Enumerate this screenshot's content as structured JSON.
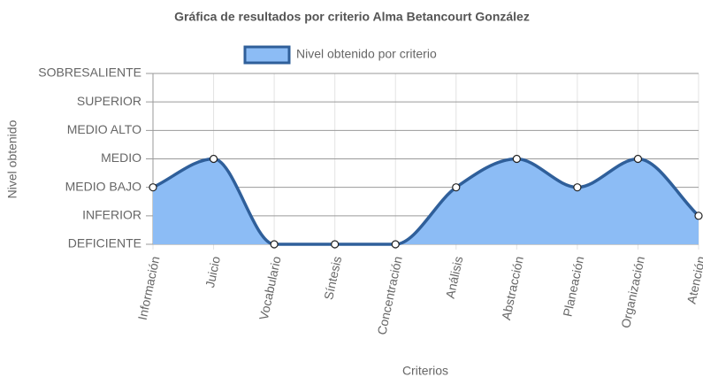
{
  "chart_data": {
    "type": "line",
    "title": "Gráfica de resultados por criterio Alma Betancourt González",
    "x_label": "Criterios",
    "y_label": "Nivel obtenido",
    "categories": [
      "Información",
      "Juicio",
      "Vocabulario",
      "Síntesis",
      "Concentración",
      "Análisis",
      "Abstracción",
      "Planeación",
      "Organización",
      "Atención"
    ],
    "series": [
      {
        "name": "Nivel obtenido por criterio",
        "color": "#2f5f9a",
        "fill": "#8cbcf5",
        "values": [
          2,
          3,
          0,
          0,
          0,
          2,
          3,
          2,
          3,
          1
        ]
      }
    ],
    "ylim": [
      0,
      6
    ],
    "yticks": [
      {
        "value": 0,
        "label": "DEFICIENTE"
      },
      {
        "value": 1,
        "label": "INFERIOR"
      },
      {
        "value": 2,
        "label": "MEDIO BAJO"
      },
      {
        "value": 3,
        "label": "MEDIO"
      },
      {
        "value": 4,
        "label": "MEDIO ALTO"
      },
      {
        "value": 5,
        "label": "SUPERIOR"
      },
      {
        "value": 6,
        "label": "SOBRESALIENTE"
      }
    ],
    "grid": true,
    "legend": "top"
  }
}
